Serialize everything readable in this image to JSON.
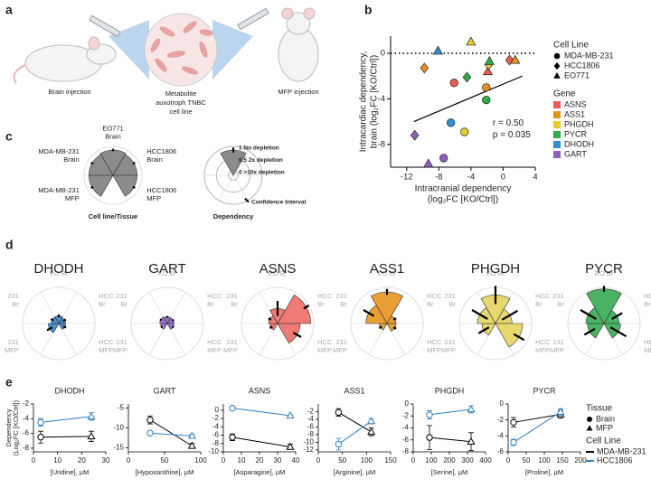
{
  "figure": {
    "panel_labels": [
      "a",
      "b",
      "c",
      "d",
      "e"
    ]
  },
  "illustration": {
    "labels": [
      "Brain injection",
      "MFP injection"
    ],
    "cell_line_label": [
      "Metabolite",
      "auxotroph TNBC",
      "cell line"
    ]
  },
  "line_legend": {
    "tissue_title": "Tissue",
    "tissue": [
      {
        "name": "Brain",
        "marker": "circle"
      },
      {
        "name": "MFP",
        "marker": "triangle"
      }
    ],
    "cell_line_title": "Cell Line",
    "cell_lines": [
      {
        "name": "MDA-MB-231",
        "color": "#000000"
      },
      {
        "name": "HCC1806",
        "color": "#2f7fc1"
      }
    ]
  },
  "chart_data": [
    {
      "type": "scatter",
      "xlabel": [
        "Intracranial dependency",
        "(log₂FC [KO/Ctrl])"
      ],
      "ylabel": [
        "Intracardiac dependency,",
        "brain (log₂FC [KO/Ctrl])"
      ],
      "xlim": [
        -14,
        4
      ],
      "xticks": [
        -12,
        -8,
        -4,
        0,
        4
      ],
      "ylim": [
        -10,
        1.5
      ],
      "yticks": [
        0,
        -4,
        -8
      ],
      "reference_line": 0,
      "fit_line": {
        "x": [
          -11.1,
          2.4
        ],
        "y": [
          -6,
          -2
        ]
      },
      "annotations": [
        "r = 0.50",
        "p = 0.035"
      ],
      "shape_legend": {
        "title": "Cell Line",
        "items": [
          {
            "name": "MDA-MB-231",
            "marker": "circle"
          },
          {
            "name": "HCC1806",
            "marker": "diamond"
          },
          {
            "name": "EO771",
            "marker": "triangle"
          }
        ]
      },
      "color_legend_title": "Gene",
      "series": [
        {
          "name": "ASNS",
          "color": "#ee5a52",
          "x": [
            -6.1,
            0.8,
            -1.9
          ],
          "values": [
            -2.6,
            -0.6,
            -1.6
          ],
          "markers": [
            "circle",
            "diamond",
            "triangle"
          ]
        },
        {
          "name": "ASS1",
          "color": "#e8901e",
          "x": [
            -2.1,
            -9.8,
            1.5
          ],
          "values": [
            -3.0,
            -1.3,
            -0.6
          ],
          "markers": [
            "circle",
            "diamond",
            "triangle"
          ]
        },
        {
          "name": "PHGDH",
          "color": "#e6cf2e",
          "x": [
            -4.8,
            -1.8,
            -4
          ],
          "values": [
            -6.9,
            -1.0,
            1
          ],
          "markers": [
            "circle",
            "diamond",
            "triangle"
          ]
        },
        {
          "name": "PYCR",
          "color": "#2fae4e",
          "x": [
            -2.1,
            -4.5,
            -1.7
          ],
          "values": [
            -4.1,
            -2.1,
            -0.7
          ],
          "markers": [
            "circle",
            "diamond",
            "triangle"
          ]
        },
        {
          "name": "DHODH",
          "color": "#2f8fd1",
          "x": [
            -6.5,
            -8.1
          ],
          "values": [
            -6.1,
            0.2
          ],
          "markers": [
            "circle",
            "triangle"
          ]
        },
        {
          "name": "GART",
          "color": "#8e5fc0",
          "x": [
            -7.4,
            -11,
            -9.3
          ],
          "values": [
            -9.2,
            -7.2,
            -9.7
          ],
          "markers": [
            "circle",
            "diamond",
            "triangle"
          ]
        }
      ]
    },
    {
      "type": "rose",
      "title": "Cell line/Tissue",
      "title_position": "bottom",
      "color": "#808080",
      "rlim": [
        -0.2,
        1
      ],
      "categories": [
        [
          "EO771",
          "Brain"
        ],
        [
          "HCC1806",
          "Brain"
        ],
        [
          "HCC1806",
          "MFP"
        ],
        null,
        [
          "MDA-MB-231",
          "MFP"
        ],
        [
          "MDA-MB-231",
          "Brain"
        ]
      ],
      "values": [
        0.85,
        0.8,
        0.8,
        null,
        0.8,
        0.8
      ],
      "errors": [
        0.05,
        0.05,
        0.05,
        null,
        0.05,
        0.05
      ]
    },
    {
      "type": "rose",
      "title": "Dependency",
      "title_position": "bottom",
      "color": "#808080",
      "rlim": [
        -0.2,
        1
      ],
      "categories": [
        null,
        null,
        null,
        null,
        null,
        null
      ],
      "values": [
        0.85,
        null,
        null,
        null,
        null,
        null
      ],
      "errors": [
        0.1,
        null,
        null,
        null,
        null,
        null
      ],
      "rticks": [
        {
          "value": 1,
          "label": "1 No depletion"
        },
        {
          "value": 0.5,
          "label": "0.5 2x depletion"
        },
        {
          "value": 0,
          "label": "0 >10x depletion"
        }
      ],
      "annotation": "Confidence Interval"
    },
    {
      "type": "rose",
      "title": "DHODH",
      "color": "#3b83c7",
      "rlim": [
        -0.2,
        1
      ],
      "categories": [
        [
          "EO Br"
        ],
        [
          "HCC",
          "Br"
        ],
        [
          "HCC",
          "MFP"
        ],
        null,
        [
          "231",
          "MFP"
        ],
        [
          "231",
          "Br"
        ]
      ],
      "values": [
        0.05,
        0.02,
        0.03,
        null,
        0.15,
        0.05
      ],
      "errors": [
        0.05,
        0.05,
        0.05,
        null,
        0.1,
        0.05
      ]
    },
    {
      "type": "rose",
      "title": "GART",
      "color": "#8f63c3",
      "rlim": [
        -0.2,
        1
      ],
      "categories": [
        [
          "EO Br"
        ],
        [
          "HCC",
          "Br"
        ],
        [
          "HCC",
          "MFP"
        ],
        null,
        [
          "231",
          "MFP"
        ],
        [
          "231",
          "Br"
        ]
      ],
      "values": [
        0.02,
        0.02,
        0.02,
        null,
        0.02,
        0.05
      ],
      "errors": [
        0.03,
        0.03,
        0.03,
        null,
        0.03,
        0.03
      ]
    },
    {
      "type": "rose",
      "title": "ASNS",
      "color": "#ee6b66",
      "rlim": [
        -0.2,
        1
      ],
      "categories": [
        [
          "EO Br"
        ],
        [
          "HCC",
          "Br"
        ],
        [
          "HCC",
          "MFP"
        ],
        null,
        [
          "231",
          "MFP"
        ],
        [
          "231",
          "Br"
        ]
      ],
      "values": [
        0.3,
        0.9,
        0.55,
        null,
        0.05,
        0.1
      ],
      "errors": [
        0.25,
        0.1,
        0.15,
        null,
        0.05,
        0.05
      ]
    },
    {
      "type": "rose",
      "title": "ASS1",
      "color": "#e8951f",
      "rlim": [
        -0.2,
        1
      ],
      "categories": [
        [
          "EO Br"
        ],
        [
          "HCC",
          "Br"
        ],
        [
          "HCC",
          "MFP"
        ],
        null,
        [
          "231",
          "MFP"
        ],
        [
          "231",
          "Br"
        ]
      ],
      "values": [
        0.85,
        0.1,
        0.1,
        null,
        0.05,
        0.5
      ],
      "errors": [
        0.1,
        0.05,
        0.05,
        null,
        0.05,
        0.2
      ]
    },
    {
      "type": "rose",
      "title": "PHGDH",
      "color": "#e3d45e",
      "rlim": [
        -0.2,
        1
      ],
      "categories": [
        [
          "EO Br"
        ],
        [
          "HCC",
          "Br"
        ],
        [
          "HCC",
          "MFP"
        ],
        null,
        [
          "231",
          "MFP"
        ],
        [
          "231",
          "Br"
        ]
      ],
      "values": [
        0.75,
        0.35,
        0.7,
        null,
        0.25,
        0.4
      ],
      "errors": [
        0.3,
        0.3,
        0.2,
        null,
        0.2,
        0.3
      ]
    },
    {
      "type": "rose",
      "title": "PYCR",
      "color": "#36ab52",
      "rlim": [
        -0.2,
        1
      ],
      "categories": [
        [
          "EO Br"
        ],
        [
          "HCC",
          "Br"
        ],
        [
          "HCC",
          "MFP"
        ],
        null,
        [
          "231",
          "MFP"
        ],
        [
          "231",
          "Br"
        ]
      ],
      "values": [
        0.95,
        0.3,
        0.35,
        null,
        0.35,
        0.4
      ],
      "errors": [
        0.1,
        0.2,
        0.3,
        null,
        0.2,
        0.3
      ]
    },
    {
      "type": "line",
      "title": "DHODH",
      "xlabel": "[Uridine], µM",
      "ylabel": [
        "Dependency",
        "(Log₂FC [KO/Ctrl])"
      ],
      "xlim": [
        0,
        30
      ],
      "xticks": [
        0,
        10,
        20,
        30
      ],
      "ylim": [
        -8.5,
        -2
      ],
      "yticks": [
        -2,
        -4,
        -6,
        -8
      ],
      "series": [
        {
          "color": "#000000",
          "x": [
            3,
            24
          ],
          "values": [
            -6.5,
            -6.4
          ],
          "errors": [
            0.8,
            0.7
          ],
          "markers": [
            "circle",
            "triangle"
          ]
        },
        {
          "color": "#2f7fc1",
          "x": [
            3,
            24
          ],
          "values": [
            -4.5,
            -3.7
          ],
          "errors": [
            0.5,
            0.5
          ],
          "markers": [
            "circle",
            "triangle"
          ]
        }
      ]
    },
    {
      "type": "line",
      "title": "GART",
      "xlabel": "[Hypoxanthine], µM",
      "xlim": [
        0,
        100
      ],
      "xticks": [
        0,
        50,
        100
      ],
      "ylim": [
        -16,
        -4
      ],
      "yticks": [
        -5,
        -10,
        -15
      ],
      "series": [
        {
          "color": "#000000",
          "x": [
            30,
            88
          ],
          "values": [
            -8,
            -14.5
          ],
          "errors": [
            1,
            0.6
          ],
          "markers": [
            "circle",
            "triangle"
          ]
        },
        {
          "color": "#2f7fc1",
          "x": [
            30,
            88
          ],
          "values": [
            -11.3,
            -12
          ],
          "errors": [
            0.4,
            0.4
          ],
          "markers": [
            "circle",
            "triangle"
          ]
        }
      ]
    },
    {
      "type": "line",
      "title": "ASNS",
      "xlabel": "[Asparagine], µM",
      "xlim": [
        0,
        40
      ],
      "xticks": [
        0,
        10,
        20,
        30,
        40
      ],
      "ylim": [
        -10,
        1.5
      ],
      "yticks": [
        0,
        -2,
        -4,
        -6,
        -8,
        -10
      ],
      "series": [
        {
          "color": "#000000",
          "x": [
            5,
            37
          ],
          "values": [
            -6.5,
            -8.8
          ],
          "errors": [
            0.8,
            0.6
          ],
          "markers": [
            "circle",
            "triangle"
          ]
        },
        {
          "color": "#2f7fc1",
          "x": [
            5,
            37
          ],
          "values": [
            0.5,
            -1.3
          ],
          "errors": [
            0.2,
            0.2
          ],
          "markers": [
            "circle",
            "triangle"
          ]
        }
      ]
    },
    {
      "type": "line",
      "title": "ASS1",
      "xlabel": "[Arginine], µM",
      "xlim": [
        0,
        150
      ],
      "xticks": [
        0,
        50,
        100,
        150
      ],
      "ylim": [
        -12.5,
        0
      ],
      "yticks": [
        -2,
        -4,
        -6,
        -8,
        -10,
        -12
      ],
      "series": [
        {
          "color": "#000000",
          "x": [
            42,
            110
          ],
          "values": [
            -2.2,
            -7.3
          ],
          "errors": [
            1,
            1
          ],
          "markers": [
            "circle",
            "triangle"
          ]
        },
        {
          "color": "#2f7fc1",
          "x": [
            42,
            110
          ],
          "values": [
            -10.5,
            -4.5
          ],
          "errors": [
            1.5,
            0.7
          ],
          "markers": [
            "circle",
            "triangle"
          ]
        }
      ]
    },
    {
      "type": "line",
      "title": "PHGDH",
      "xlabel": "[Serine], µM",
      "xlim": [
        0,
        400
      ],
      "xticks": [
        0,
        100,
        200,
        300,
        400
      ],
      "ylim": [
        -8,
        0
      ],
      "yticks": [
        0,
        -2,
        -4,
        -6,
        -8
      ],
      "series": [
        {
          "color": "#000000",
          "x": [
            90,
            320
          ],
          "values": [
            -5.6,
            -6.3
          ],
          "errors": [
            2,
            1.5
          ],
          "markers": [
            "circle",
            "triangle"
          ]
        },
        {
          "color": "#2f7fc1",
          "x": [
            90,
            320
          ],
          "values": [
            -1.8,
            -0.9
          ],
          "errors": [
            0.7,
            0.6
          ],
          "markers": [
            "circle",
            "triangle"
          ]
        }
      ]
    },
    {
      "type": "line",
      "title": "PYCR",
      "xlabel": "[Proline], µM",
      "xlim": [
        0,
        200
      ],
      "xticks": [
        0,
        50,
        100,
        150,
        200
      ],
      "ylim": [
        -6,
        0
      ],
      "yticks": [
        0,
        -2,
        -4,
        -6
      ],
      "series": [
        {
          "color": "#000000",
          "x": [
            15,
            145
          ],
          "values": [
            -2.3,
            -1.3
          ],
          "errors": [
            0.6,
            0.5
          ],
          "markers": [
            "circle",
            "triangle"
          ]
        },
        {
          "color": "#2f7fc1",
          "x": [
            15,
            145
          ],
          "values": [
            -4.8,
            -1.0
          ],
          "errors": [
            0.4,
            0.4
          ],
          "markers": [
            "circle",
            "triangle"
          ]
        }
      ]
    }
  ]
}
